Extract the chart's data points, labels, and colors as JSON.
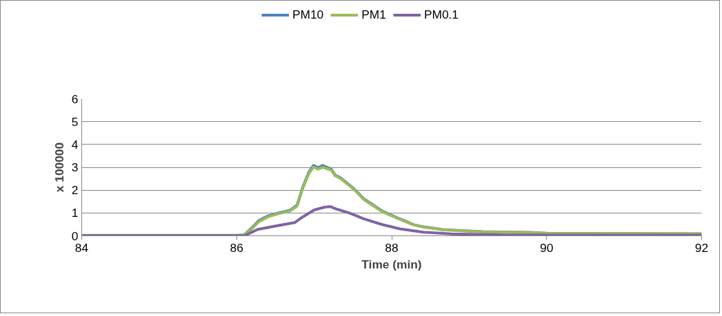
{
  "chart_data": {
    "type": "line",
    "xlabel": "Time (min)",
    "ylabel": "x 100000",
    "xlim": [
      84,
      92
    ],
    "xticks": [
      84,
      86,
      88,
      90,
      92
    ],
    "ylim": [
      0,
      6
    ],
    "yticks": [
      0,
      1,
      2,
      3,
      4,
      5,
      6
    ],
    "grid": "y",
    "legend": "top",
    "marker": "none",
    "line_style": "solid",
    "series": [
      {
        "name": "PM10",
        "color": "#4f81bd",
        "x": [
          86.1,
          86.18,
          86.29,
          86.41,
          86.54,
          86.69,
          86.78,
          86.85,
          86.93,
          86.99,
          87.05,
          87.11,
          87.22,
          87.27,
          87.34,
          87.52,
          87.64,
          87.88,
          88.05,
          88.17,
          88.29,
          88.41,
          88.59,
          88.65,
          89.0,
          89.18,
          89.78,
          90,
          91,
          92
        ],
        "values": [
          0.05,
          0.3,
          0.68,
          0.88,
          1.0,
          1.12,
          1.35,
          2.1,
          2.78,
          3.08,
          2.98,
          3.08,
          2.92,
          2.66,
          2.54,
          2.04,
          1.62,
          1.08,
          0.82,
          0.65,
          0.48,
          0.39,
          0.31,
          0.27,
          0.21,
          0.18,
          0.15,
          0.11,
          0.1,
          0.09
        ]
      },
      {
        "name": "PM1",
        "color": "#9bbb59",
        "x": [
          84,
          85,
          86,
          86.1,
          86.18,
          86.29,
          86.41,
          86.54,
          86.69,
          86.78,
          86.85,
          86.93,
          86.99,
          87.05,
          87.11,
          87.22,
          87.27,
          87.34,
          87.52,
          87.64,
          87.88,
          88.05,
          88.17,
          88.29,
          88.41,
          88.59,
          88.65,
          89.0,
          89.18,
          89.78,
          90,
          91,
          92
        ],
        "values": [
          0.02,
          0.02,
          0.02,
          0.05,
          0.26,
          0.63,
          0.84,
          0.97,
          1.09,
          1.3,
          2.05,
          2.72,
          3.01,
          2.92,
          3.0,
          2.88,
          2.63,
          2.51,
          2.01,
          1.59,
          1.05,
          0.8,
          0.63,
          0.47,
          0.38,
          0.3,
          0.26,
          0.2,
          0.17,
          0.14,
          0.1,
          0.1,
          0.08
        ]
      },
      {
        "name": "PM0.1",
        "color": "#8064a2",
        "x": [
          84,
          85,
          86,
          86.1,
          86.27,
          86.54,
          86.75,
          86.84,
          87.0,
          87.13,
          87.21,
          87.28,
          87.46,
          87.64,
          87.88,
          88.11,
          88.41,
          88.77,
          89.5,
          90,
          91,
          92
        ],
        "values": [
          0.01,
          0.01,
          0.01,
          0.0,
          0.28,
          0.45,
          0.58,
          0.8,
          1.13,
          1.25,
          1.28,
          1.18,
          0.99,
          0.74,
          0.49,
          0.3,
          0.16,
          0.08,
          0.04,
          0.03,
          0.03,
          0.03
        ]
      }
    ]
  }
}
